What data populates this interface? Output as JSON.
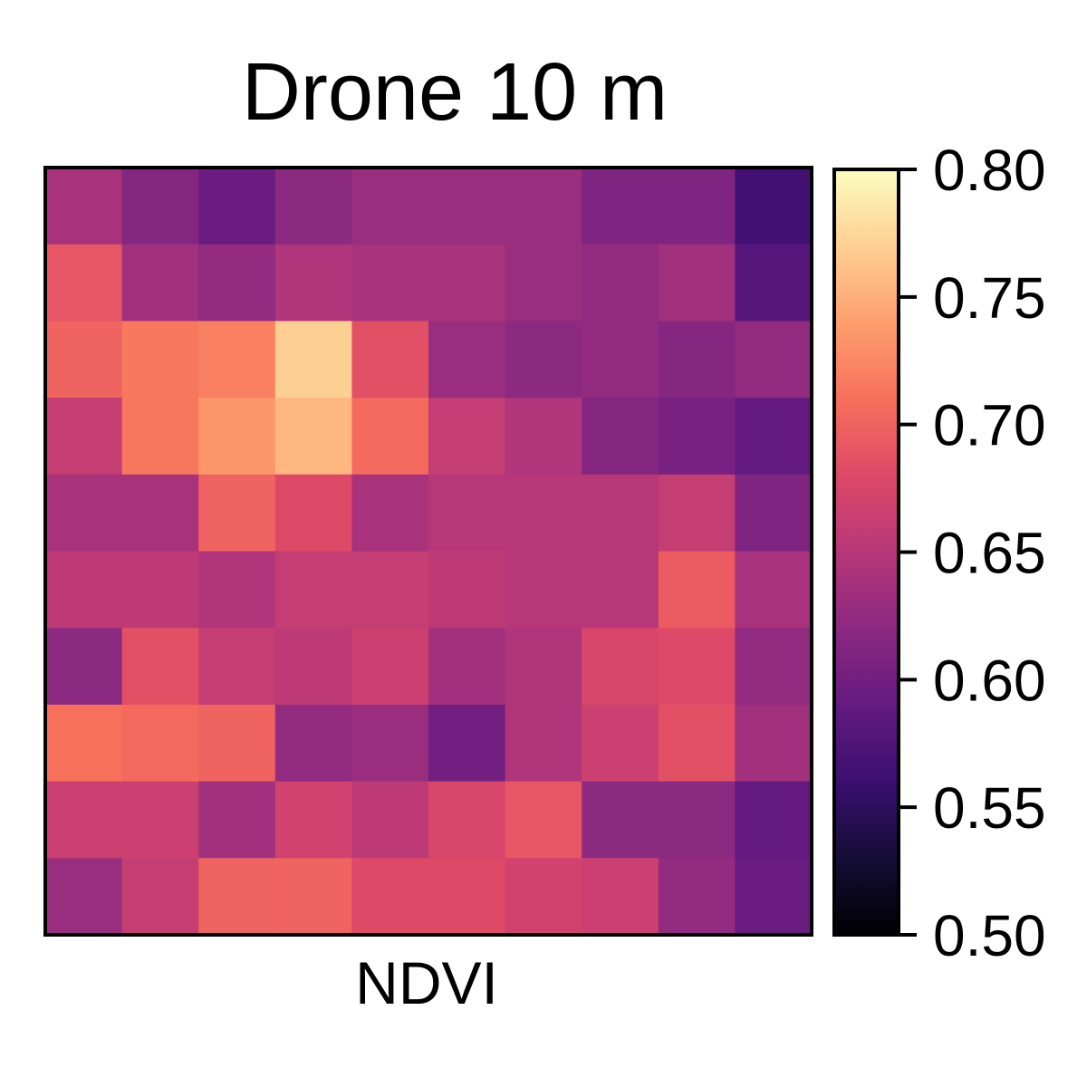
{
  "chart_data": {
    "type": "heatmap",
    "title": "Drone 10 m",
    "xlabel": "NDVI",
    "ylabel": "",
    "colormap": "magma",
    "colorbar": {
      "min": 0.5,
      "max": 0.8,
      "ticks": [
        0.5,
        0.55,
        0.6,
        0.65,
        0.7,
        0.75,
        0.8
      ],
      "tick_labels": [
        "0.50",
        "0.55",
        "0.60",
        "0.65",
        "0.70",
        "0.75",
        "0.80"
      ]
    },
    "rows": 10,
    "cols": 10,
    "values": [
      [
        0.64,
        0.615,
        0.595,
        0.62,
        0.63,
        0.63,
        0.63,
        0.61,
        0.61,
        0.565
      ],
      [
        0.69,
        0.635,
        0.625,
        0.645,
        0.64,
        0.64,
        0.63,
        0.625,
        0.635,
        0.58
      ],
      [
        0.7,
        0.715,
        0.72,
        0.77,
        0.685,
        0.63,
        0.62,
        0.625,
        0.615,
        0.625
      ],
      [
        0.66,
        0.715,
        0.735,
        0.755,
        0.705,
        0.66,
        0.645,
        0.615,
        0.605,
        0.59
      ],
      [
        0.64,
        0.64,
        0.7,
        0.68,
        0.64,
        0.65,
        0.65,
        0.65,
        0.66,
        0.61
      ],
      [
        0.655,
        0.655,
        0.645,
        0.66,
        0.66,
        0.655,
        0.65,
        0.65,
        0.695,
        0.64
      ],
      [
        0.62,
        0.685,
        0.66,
        0.655,
        0.665,
        0.635,
        0.645,
        0.675,
        0.68,
        0.625
      ],
      [
        0.71,
        0.705,
        0.7,
        0.625,
        0.63,
        0.6,
        0.645,
        0.665,
        0.685,
        0.635
      ],
      [
        0.665,
        0.665,
        0.635,
        0.67,
        0.655,
        0.675,
        0.69,
        0.62,
        0.62,
        0.59
      ],
      [
        0.63,
        0.66,
        0.7,
        0.7,
        0.68,
        0.68,
        0.67,
        0.665,
        0.625,
        0.595
      ]
    ]
  },
  "colors": {
    "frame": "#000000",
    "text": "#000000",
    "background": "#ffffff"
  }
}
